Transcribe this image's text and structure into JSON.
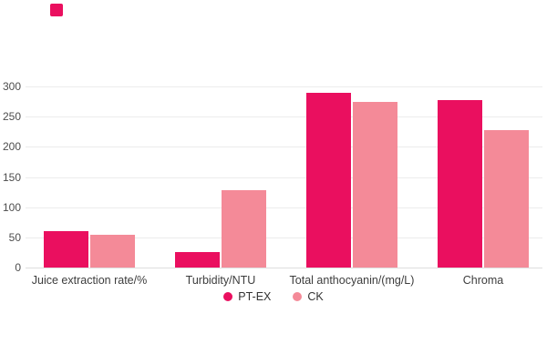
{
  "accent_square": {
    "color": "#EA0F5F"
  },
  "colors": {
    "pt_ex": "#EA0F5F",
    "ck": "#F48A98",
    "gridline": "#ececec",
    "baseline": "#dedede",
    "tick_text": "#4d4d4d",
    "category_text": "#3d3d3d",
    "legend_text": "#333333"
  },
  "chart_data": {
    "type": "bar",
    "title": "",
    "xlabel": "",
    "ylabel": "",
    "categories": [
      "Juice extraction rate/%",
      "Turbidity/NTU",
      "Total anthocyanin/(mg/L)",
      "Chroma"
    ],
    "series": [
      {
        "name": "PT-EX",
        "color": "#EA0F5F",
        "values": [
          60,
          25,
          290,
          278
        ]
      },
      {
        "name": "CK",
        "color": "#F48A98",
        "values": [
          54,
          128,
          274,
          227
        ]
      }
    ],
    "ylim": [
      0,
      300
    ],
    "yticks": [
      0,
      50,
      100,
      150,
      200,
      250,
      300
    ],
    "grid": true,
    "legend_position": "bottom-center"
  }
}
